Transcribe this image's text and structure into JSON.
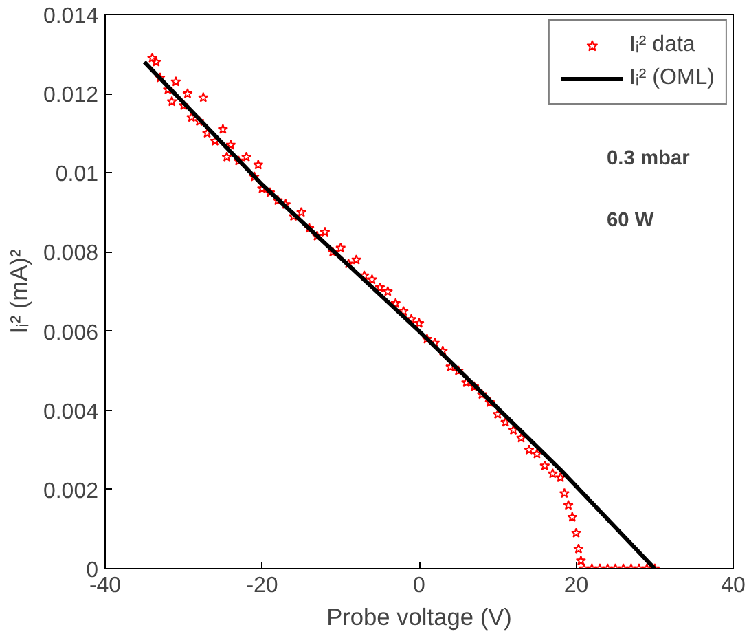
{
  "chart_data": {
    "type": "scatter",
    "xlabel": "Probe voltage (V)",
    "ylabel": "Iᵢ² (mA)²",
    "xlim": [
      -40,
      40
    ],
    "ylim": [
      0,
      0.014
    ],
    "xticks": [
      -40,
      -20,
      0,
      20,
      40
    ],
    "yticks": [
      0,
      0.002,
      0.004,
      0.006,
      0.008,
      0.01,
      0.012,
      0.014
    ],
    "grid": false,
    "legend": "top right",
    "annotations": [
      "0.3 mbar",
      "60 W"
    ],
    "series": [
      {
        "name": "Iᵢ² data",
        "marker": "star",
        "color": "#ff0000",
        "x": [
          -34,
          -33.5,
          -33,
          -32,
          -31.5,
          -31,
          -30,
          -29.5,
          -29,
          -28,
          -27.5,
          -27,
          -26,
          -25,
          -24.5,
          -24,
          -23,
          -22,
          -21,
          -20.5,
          -20,
          -19,
          -18,
          -17,
          -16,
          -15,
          -14,
          -13,
          -12,
          -11,
          -10,
          -9,
          -8,
          -7,
          -6,
          -5,
          -4,
          -3,
          -2,
          -1,
          0,
          1,
          2,
          3,
          4,
          5,
          6,
          7,
          8,
          9,
          10,
          11,
          12,
          13,
          14,
          15,
          16,
          17,
          18,
          18.5,
          19,
          19.5,
          20,
          20.3,
          20.6,
          21,
          22,
          23,
          24,
          25,
          26,
          27,
          28,
          29,
          30
        ],
        "values": [
          0.0129,
          0.0128,
          0.0124,
          0.0121,
          0.0118,
          0.0123,
          0.0117,
          0.012,
          0.0114,
          0.0113,
          0.0119,
          0.011,
          0.0108,
          0.0111,
          0.0104,
          0.0107,
          0.0103,
          0.0104,
          0.0099,
          0.0102,
          0.0096,
          0.0095,
          0.0093,
          0.0092,
          0.0089,
          0.009,
          0.0086,
          0.0084,
          0.0085,
          0.008,
          0.0081,
          0.0077,
          0.0078,
          0.0074,
          0.0073,
          0.0071,
          0.007,
          0.0067,
          0.0065,
          0.0063,
          0.0062,
          0.0058,
          0.0057,
          0.0055,
          0.0051,
          0.005,
          0.0047,
          0.0046,
          0.0044,
          0.0042,
          0.0039,
          0.0037,
          0.0035,
          0.0033,
          0.003,
          0.0029,
          0.0026,
          0.0024,
          0.0023,
          0.0019,
          0.0016,
          0.0013,
          0.0009,
          0.0005,
          0.0002,
          0,
          0,
          0,
          0,
          0,
          0,
          0,
          0,
          0,
          0
        ]
      },
      {
        "name": "Iᵢ² (OML)",
        "type": "line",
        "line_style": "solid",
        "color": "#000000",
        "x": [
          -35,
          -20,
          0,
          18,
          30
        ],
        "values": [
          0.0128,
          0.0097,
          0.006,
          0.0025,
          0
        ]
      }
    ]
  }
}
